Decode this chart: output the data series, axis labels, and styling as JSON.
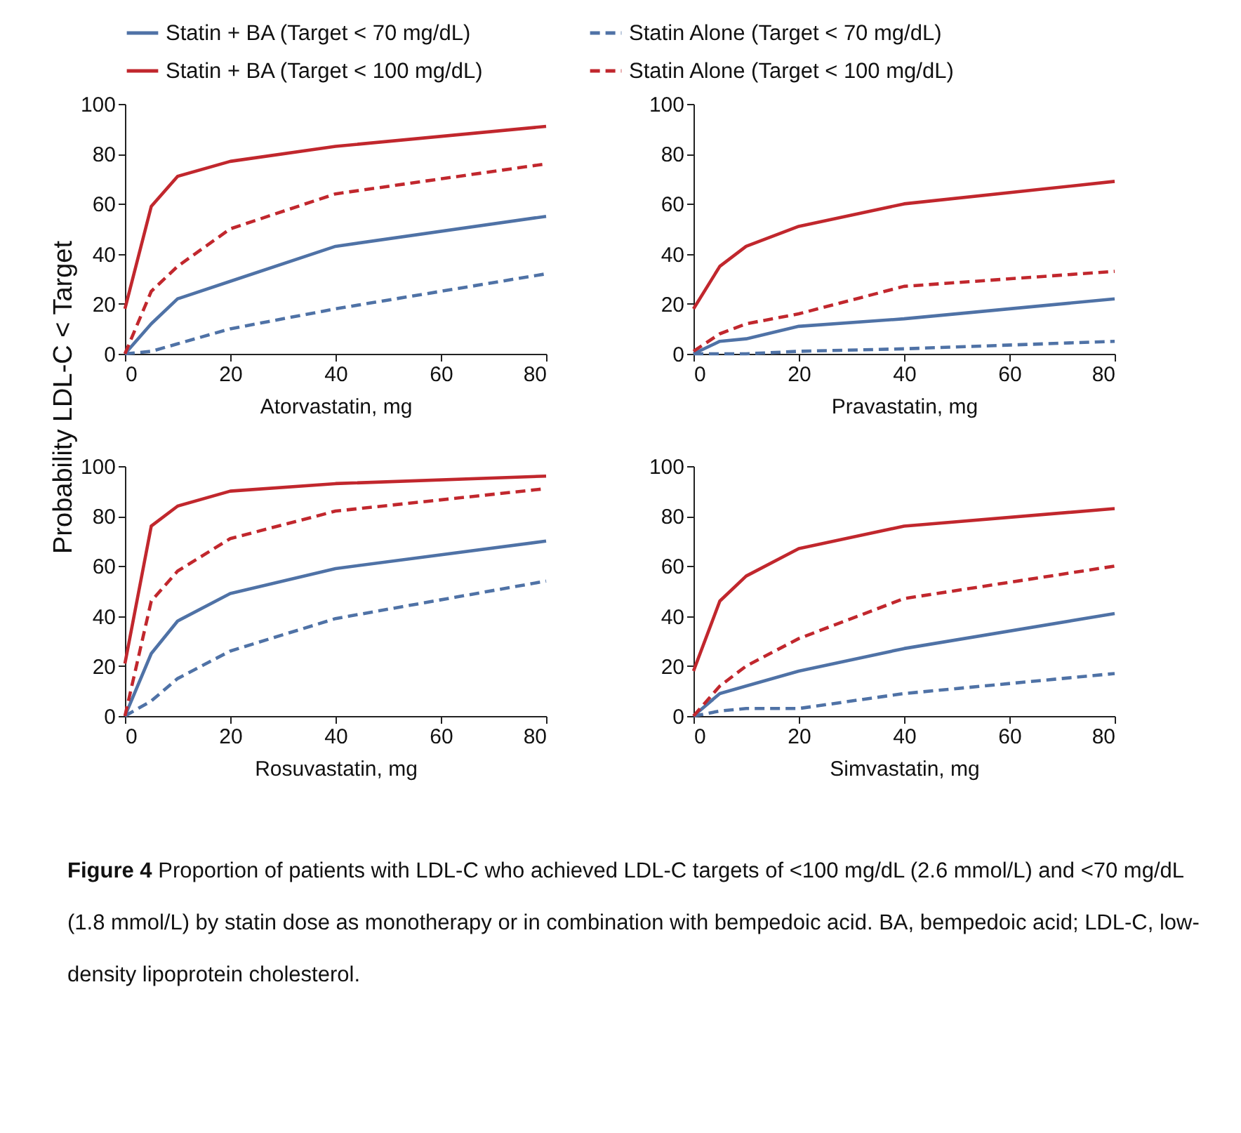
{
  "chart_data": [
    {
      "type": "line",
      "ylabel": "Probability LDL-C < Target",
      "xlabel": "Atorvastatin, mg",
      "x": [
        0,
        5,
        10,
        20,
        40,
        80
      ],
      "xlim": [
        0,
        80
      ],
      "xticks": [
        0,
        20,
        40,
        60,
        80
      ],
      "ylim": [
        0,
        100
      ],
      "yticks": [
        0,
        20,
        40,
        60,
        80,
        100
      ],
      "legend": "top",
      "annotations": [
        "Figure 4 Proportion of patients with LDL-C who achieved LDL-C targets of <100 mg/dL (2.6 mmol/L) and <70 mg/dL (1.8 mmol/L) by statin dose as monotherapy or in combination with bempedoic acid. BA, bempedoic acid; LDL-C, low-density lipoprotein cholesterol."
      ],
      "series": [
        {
          "name": "Statin + BA (Target < 70 mg/dL)",
          "color": "#4f72a6",
          "line_style": "solid",
          "values": [
            0,
            12,
            22,
            29,
            43,
            55
          ]
        },
        {
          "name": "Statin Alone (Target < 70 mg/dL)",
          "color": "#4f72a6",
          "line_style": "dashed",
          "values": [
            0,
            1,
            4,
            10,
            18,
            32
          ]
        },
        {
          "name": "Statin + BA (Target < 100 mg/dL)",
          "color": "#c1272d",
          "line_style": "solid",
          "values": [
            18,
            59,
            71,
            77,
            83,
            91
          ]
        },
        {
          "name": "Statin Alone (Target < 100 mg/dL)",
          "color": "#c1272d",
          "line_style": "dashed",
          "values": [
            0,
            25,
            35,
            50,
            64,
            76
          ]
        }
      ]
    },
    {
      "type": "line",
      "xlabel": "Pravastatin, mg",
      "x": [
        0,
        5,
        10,
        20,
        40,
        80
      ],
      "xlim": [
        0,
        80
      ],
      "xticks": [
        0,
        20,
        40,
        60,
        80
      ],
      "ylim": [
        0,
        100
      ],
      "yticks": [
        0,
        20,
        40,
        60,
        80,
        100
      ],
      "series": [
        {
          "name": "Statin + BA (Target < 70 mg/dL)",
          "color": "#4f72a6",
          "line_style": "solid",
          "values": [
            0,
            5,
            6,
            11,
            14,
            22
          ]
        },
        {
          "name": "Statin Alone (Target < 70 mg/dL)",
          "color": "#4f72a6",
          "line_style": "dashed",
          "values": [
            0,
            0,
            0,
            1,
            2,
            5
          ]
        },
        {
          "name": "Statin + BA (Target < 100 mg/dL)",
          "color": "#c1272d",
          "line_style": "solid",
          "values": [
            18,
            35,
            43,
            51,
            60,
            69
          ]
        },
        {
          "name": "Statin Alone (Target < 100 mg/dL)",
          "color": "#c1272d",
          "line_style": "dashed",
          "values": [
            1,
            8,
            12,
            16,
            27,
            33
          ]
        }
      ]
    },
    {
      "type": "line",
      "xlabel": "Rosuvastatin, mg",
      "x": [
        0,
        5,
        10,
        20,
        40,
        80
      ],
      "xlim": [
        0,
        80
      ],
      "xticks": [
        0,
        20,
        40,
        60,
        80
      ],
      "ylim": [
        0,
        100
      ],
      "yticks": [
        0,
        20,
        40,
        60,
        80,
        100
      ],
      "series": [
        {
          "name": "Statin + BA (Target < 70 mg/dL)",
          "color": "#4f72a6",
          "line_style": "solid",
          "values": [
            0,
            25,
            38,
            49,
            59,
            70
          ]
        },
        {
          "name": "Statin Alone (Target < 70 mg/dL)",
          "color": "#4f72a6",
          "line_style": "dashed",
          "values": [
            0,
            6,
            15,
            26,
            39,
            54
          ]
        },
        {
          "name": "Statin + BA (Target < 100 mg/dL)",
          "color": "#c1272d",
          "line_style": "solid",
          "values": [
            21,
            76,
            84,
            90,
            93,
            96
          ]
        },
        {
          "name": "Statin Alone (Target < 100 mg/dL)",
          "color": "#c1272d",
          "line_style": "dashed",
          "values": [
            0,
            46,
            58,
            71,
            82,
            91
          ]
        }
      ]
    },
    {
      "type": "line",
      "xlabel": "Simvastatin, mg",
      "x": [
        0,
        5,
        10,
        20,
        40,
        80
      ],
      "xlim": [
        0,
        80
      ],
      "xticks": [
        0,
        20,
        40,
        60,
        80
      ],
      "ylim": [
        0,
        100
      ],
      "yticks": [
        0,
        20,
        40,
        60,
        80,
        100
      ],
      "series": [
        {
          "name": "Statin + BA (Target < 70 mg/dL)",
          "color": "#4f72a6",
          "line_style": "solid",
          "values": [
            0,
            9,
            12,
            18,
            27,
            41
          ]
        },
        {
          "name": "Statin Alone (Target < 70 mg/dL)",
          "color": "#4f72a6",
          "line_style": "dashed",
          "values": [
            0,
            2,
            3,
            3,
            9,
            17
          ]
        },
        {
          "name": "Statin + BA (Target < 100 mg/dL)",
          "color": "#c1272d",
          "line_style": "solid",
          "values": [
            18,
            46,
            56,
            67,
            76,
            83
          ]
        },
        {
          "name": "Statin Alone (Target < 100 mg/dL)",
          "color": "#c1272d",
          "line_style": "dashed",
          "values": [
            0,
            12,
            20,
            31,
            47,
            60
          ]
        }
      ]
    }
  ]
}
